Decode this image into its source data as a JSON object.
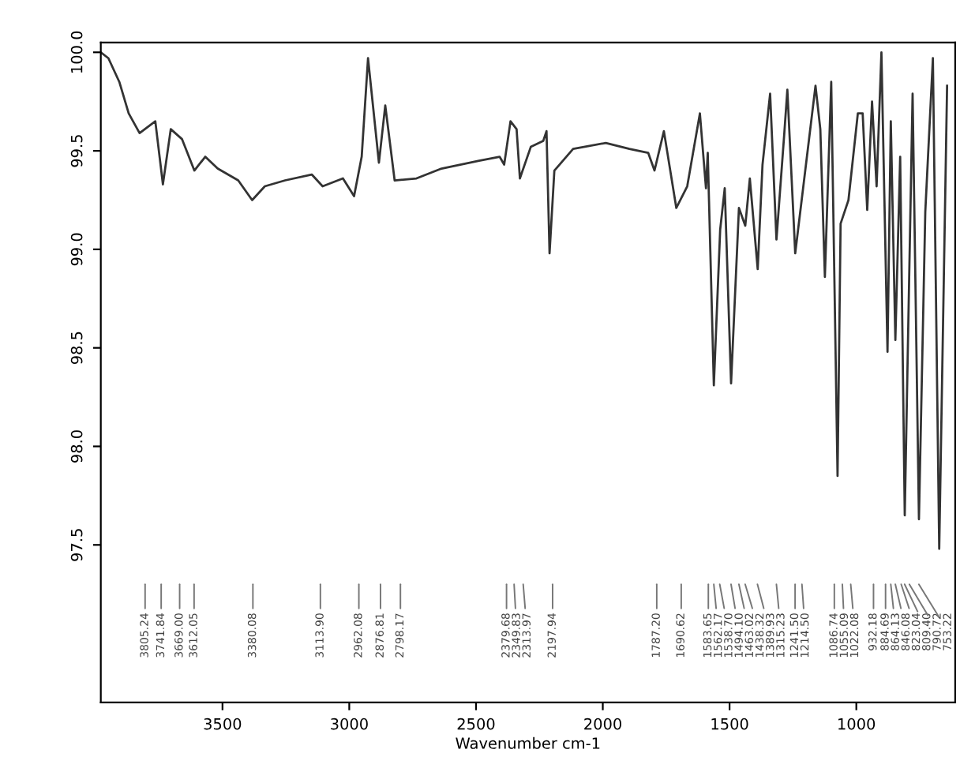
{
  "chart_data": {
    "type": "line",
    "xlabel": "Wavenumber cm-1",
    "xlim": [
      3980,
      610
    ],
    "ylim": [
      96.7,
      100.05
    ],
    "xticks": [
      3500,
      3000,
      2500,
      2000,
      1500,
      1000
    ],
    "yticks": [
      {
        "value": 97.5,
        "label": "97.5"
      },
      {
        "value": 98.0,
        "label": "98.0"
      },
      {
        "value": 98.5,
        "label": "98.5"
      },
      {
        "value": 99.0,
        "label": "99.0"
      },
      {
        "value": 99.5,
        "label": "99.5"
      },
      {
        "value": 100.0,
        "label": "100.0"
      }
    ],
    "grid": false,
    "marker": "none",
    "line_style": "solid",
    "series": [
      {
        "color": "#333333",
        "x": [
          3980,
          3950,
          3907,
          3870,
          3827,
          3765,
          3735,
          3704,
          3660,
          3611,
          3568,
          3519,
          3438,
          3383,
          3333,
          3253,
          3148,
          3105,
          3025,
          2981,
          2951,
          2926,
          2883,
          2858,
          2821,
          2735,
          2636,
          2488,
          2407,
          2389,
          2364,
          2340,
          2327,
          2284,
          2235,
          2222,
          2210,
          2191,
          2117,
          1988,
          1895,
          1821,
          1796,
          1759,
          1710,
          1667,
          1617,
          1593,
          1586,
          1562,
          1537,
          1519,
          1494,
          1463,
          1438,
          1420,
          1389,
          1370,
          1340,
          1315,
          1284,
          1272,
          1241,
          1161,
          1142,
          1124,
          1099,
          1074,
          1062,
          1031,
          994,
          975,
          957,
          938,
          920,
          901,
          877,
          864,
          846,
          827,
          809,
          778,
          753,
          728,
          698,
          673,
          642
        ],
        "values": [
          100.0,
          99.97,
          99.85,
          99.69,
          99.59,
          99.65,
          99.33,
          99.61,
          99.56,
          99.4,
          99.47,
          99.41,
          99.35,
          99.25,
          99.32,
          99.35,
          99.38,
          99.32,
          99.36,
          99.27,
          99.47,
          99.97,
          99.44,
          99.73,
          99.35,
          99.36,
          99.41,
          99.45,
          99.47,
          99.43,
          99.65,
          99.61,
          99.36,
          99.52,
          99.55,
          99.6,
          98.98,
          99.4,
          99.51,
          99.54,
          99.51,
          99.49,
          99.4,
          99.6,
          99.21,
          99.32,
          99.69,
          99.31,
          99.49,
          98.31,
          99.1,
          99.31,
          98.32,
          99.21,
          99.12,
          99.36,
          98.9,
          99.43,
          99.79,
          99.05,
          99.59,
          99.81,
          98.98,
          99.83,
          99.61,
          98.86,
          99.85,
          97.85,
          99.13,
          99.25,
          99.69,
          99.69,
          99.2,
          99.75,
          99.32,
          100.0,
          98.48,
          99.65,
          98.54,
          99.47,
          97.65,
          99.79,
          97.63,
          99.19,
          99.97,
          97.48,
          99.83
        ]
      }
    ],
    "annotations": [
      "3805.24",
      "3741.84",
      "3669.00",
      "3612.05",
      "3380.08",
      "3113.90",
      "2962.08",
      "2876.81",
      "2798.17",
      "2379.68",
      "2349.83",
      "2313.97",
      "2197.94",
      "1787.20",
      "1690.62",
      "1583.65",
      "1562.17",
      "1538.70",
      "1494.10",
      "1463.02",
      "1438.32",
      "1389.93",
      "1315.23",
      "1241.50",
      "1214.50",
      "1086.74",
      "1055.09",
      "1022.08",
      "932.18",
      "884.69",
      "864.13",
      "846.08",
      "823.04",
      "809.40",
      "790.72",
      "753.22"
    ]
  }
}
